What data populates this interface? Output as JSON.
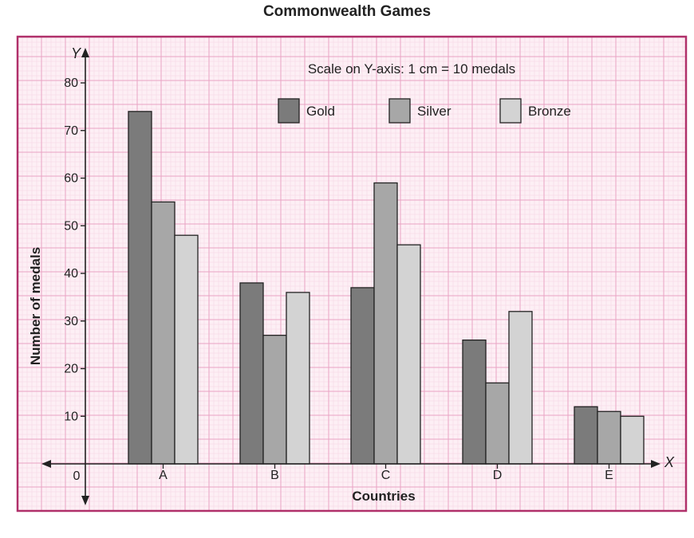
{
  "chart_data": {
    "type": "bar",
    "title": "Commonwealth Games",
    "subtitle": "Scale on Y-axis: 1 cm = 10 medals",
    "xlabel": "Countries",
    "ylabel": "Number of medals",
    "x_axis_letter": "X",
    "y_axis_letter": "Y",
    "origin_label": "0",
    "categories": [
      "A",
      "B",
      "C",
      "D",
      "E"
    ],
    "ylim": [
      0,
      80
    ],
    "yticks": [
      10,
      20,
      30,
      40,
      50,
      60,
      70,
      80
    ],
    "grid": true,
    "legend_position": "top-center",
    "series": [
      {
        "name": "Gold",
        "color": "#7b7b7b",
        "values": [
          74,
          38,
          37,
          26,
          12
        ]
      },
      {
        "name": "Silver",
        "color": "#a7a7a7",
        "values": [
          55,
          27,
          59,
          17,
          11
        ]
      },
      {
        "name": "Bronze",
        "color": "#d3d3d3",
        "values": [
          48,
          36,
          46,
          32,
          10
        ]
      }
    ],
    "colors": {
      "frame": "#b0306a",
      "grid_major": "#e9a3c3",
      "grid_minor": "#f6d5e4",
      "paper": "#fdeff5"
    }
  }
}
